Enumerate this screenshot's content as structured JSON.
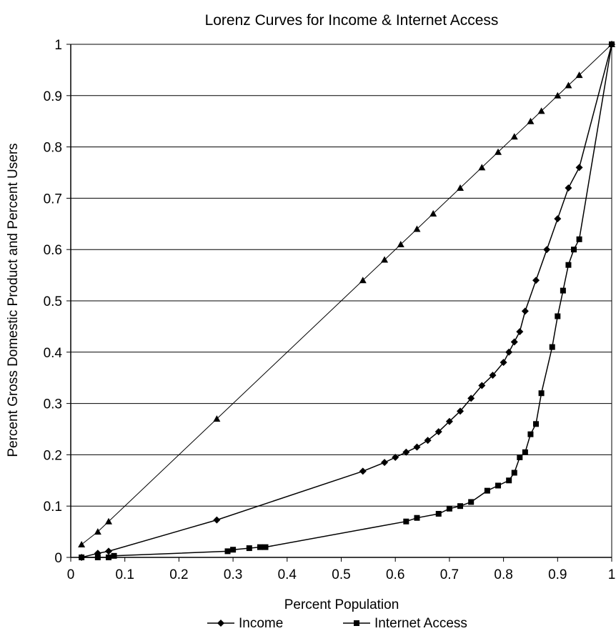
{
  "chart_data": {
    "type": "line",
    "title": "Lorenz Curves for Income & Internet Access",
    "xlabel": "Percent Population",
    "ylabel": "Percent Gross Domestic Product and Percent Users",
    "xlim": [
      0,
      1
    ],
    "ylim": [
      0,
      1
    ],
    "xticks": [
      "0",
      "0.1",
      "0.2",
      "0.3",
      "0.4",
      "0.5",
      "0.6",
      "0.7",
      "0.8",
      "0.9",
      "1"
    ],
    "yticks": [
      "0",
      "0.1",
      "0.2",
      "0.3",
      "0.4",
      "0.5",
      "0.6",
      "0.7",
      "0.8",
      "0.9",
      "1"
    ],
    "grid": "horizontal",
    "legend_position": "bottom",
    "legend": [
      "Income",
      "Internet Access"
    ],
    "series": [
      {
        "key": "equality",
        "marker": "triangle",
        "color": "#000000",
        "x": [
          0.02,
          0.05,
          0.07,
          0.27,
          0.54,
          0.58,
          0.61,
          0.64,
          0.67,
          0.72,
          0.76,
          0.79,
          0.82,
          0.85,
          0.87,
          0.9,
          0.92,
          0.94,
          1.0
        ],
        "y": [
          0.025,
          0.05,
          0.07,
          0.27,
          0.54,
          0.58,
          0.61,
          0.64,
          0.67,
          0.72,
          0.76,
          0.79,
          0.82,
          0.85,
          0.87,
          0.9,
          0.92,
          0.94,
          1.0
        ]
      },
      {
        "key": "income",
        "name": "Income",
        "marker": "diamond",
        "color": "#000000",
        "x": [
          0.02,
          0.05,
          0.07,
          0.27,
          0.54,
          0.58,
          0.6,
          0.62,
          0.64,
          0.66,
          0.68,
          0.7,
          0.72,
          0.74,
          0.76,
          0.78,
          0.8,
          0.81,
          0.82,
          0.83,
          0.84,
          0.86,
          0.88,
          0.9,
          0.92,
          0.94,
          1.0
        ],
        "y": [
          0.0,
          0.008,
          0.012,
          0.073,
          0.168,
          0.185,
          0.195,
          0.205,
          0.215,
          0.228,
          0.245,
          0.265,
          0.285,
          0.31,
          0.335,
          0.355,
          0.38,
          0.4,
          0.42,
          0.44,
          0.48,
          0.54,
          0.6,
          0.66,
          0.72,
          0.76,
          1.0
        ]
      },
      {
        "key": "internet",
        "name": "Internet Access",
        "marker": "square",
        "color": "#000000",
        "x": [
          0.02,
          0.05,
          0.07,
          0.08,
          0.29,
          0.3,
          0.33,
          0.35,
          0.36,
          0.62,
          0.64,
          0.68,
          0.7,
          0.72,
          0.74,
          0.77,
          0.79,
          0.81,
          0.82,
          0.83,
          0.84,
          0.85,
          0.86,
          0.87,
          0.89,
          0.9,
          0.91,
          0.92,
          0.93,
          0.94,
          1.0
        ],
        "y": [
          0.0,
          0.0,
          0.0,
          0.003,
          0.012,
          0.015,
          0.018,
          0.02,
          0.02,
          0.07,
          0.077,
          0.085,
          0.095,
          0.1,
          0.108,
          0.13,
          0.14,
          0.15,
          0.165,
          0.195,
          0.205,
          0.24,
          0.26,
          0.32,
          0.41,
          0.47,
          0.52,
          0.57,
          0.6,
          0.62,
          1.0
        ]
      }
    ]
  }
}
